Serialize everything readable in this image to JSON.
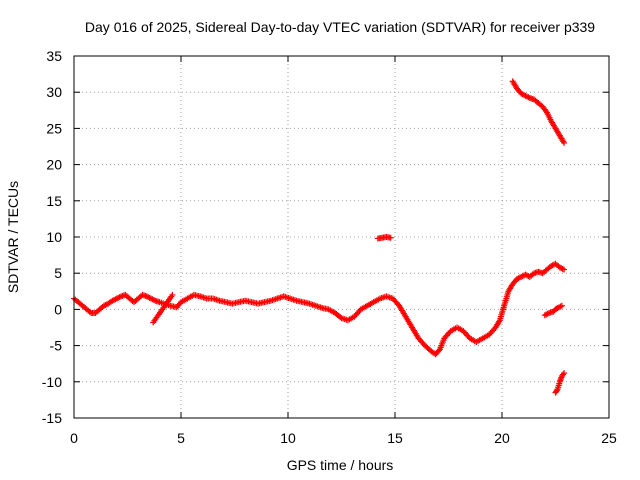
{
  "chart_data": {
    "type": "scatter",
    "title": "Day 016 of 2025, Sidereal Day-to-day VTEC variation (SDTVAR) for receiver p339",
    "xlabel": "GPS time / hours",
    "ylabel": "SDTVAR / TECUs",
    "xlim": [
      0,
      25
    ],
    "ylim": [
      -15,
      35
    ],
    "xticks": [
      0,
      5,
      10,
      15,
      20,
      25
    ],
    "yticks": [
      -15,
      -10,
      -5,
      0,
      5,
      10,
      15,
      20,
      25,
      30,
      35
    ],
    "grid": true,
    "marker": "+",
    "series": [
      {
        "name": "main",
        "color": "#ff0000",
        "x": [
          0.0,
          0.2,
          0.4,
          0.6,
          0.8,
          1.0,
          1.2,
          1.4,
          1.6,
          1.8,
          2.0,
          2.2,
          2.4,
          2.6,
          2.8,
          3.0,
          3.2,
          3.4,
          3.6,
          3.8,
          4.0,
          4.5,
          4.8,
          5.0,
          5.3,
          5.6,
          5.9,
          6.2,
          6.5,
          6.8,
          7.1,
          7.4,
          7.7,
          8.0,
          8.3,
          8.6,
          8.9,
          9.2,
          9.5,
          9.8,
          10.1,
          10.4,
          10.7,
          11.0,
          11.3,
          11.6,
          11.9,
          12.2,
          12.5,
          12.8,
          13.1,
          13.4,
          13.7,
          14.0,
          14.3,
          14.6,
          14.9,
          15.2,
          15.5,
          15.8,
          16.1,
          16.4,
          16.7,
          16.9,
          17.1,
          17.3,
          17.6,
          17.9,
          18.2,
          18.5,
          18.8,
          19.1,
          19.4,
          19.7,
          19.9,
          20.1,
          20.3,
          20.5,
          20.7,
          20.9,
          21.1,
          21.3,
          21.5,
          21.7,
          21.9,
          22.1,
          22.3,
          22.5,
          22.7,
          22.9
        ],
        "y": [
          1.5,
          1.0,
          0.5,
          0.0,
          -0.5,
          -0.5,
          0.0,
          0.5,
          0.8,
          1.2,
          1.5,
          1.8,
          2.0,
          1.5,
          1.0,
          1.5,
          2.0,
          1.8,
          1.5,
          1.2,
          1.0,
          0.5,
          0.3,
          1.0,
          1.5,
          2.0,
          1.8,
          1.5,
          1.5,
          1.2,
          1.0,
          0.8,
          1.0,
          1.2,
          1.0,
          0.8,
          1.0,
          1.2,
          1.5,
          1.8,
          1.5,
          1.2,
          1.0,
          0.8,
          0.5,
          0.2,
          0.0,
          -0.5,
          -1.2,
          -1.5,
          -1.0,
          0.0,
          0.5,
          1.0,
          1.5,
          1.8,
          1.5,
          0.5,
          -1.0,
          -2.5,
          -4.0,
          -5.0,
          -5.8,
          -6.2,
          -5.5,
          -4.0,
          -3.0,
          -2.5,
          -3.0,
          -4.0,
          -4.5,
          -4.0,
          -3.5,
          -2.5,
          -1.5,
          0.5,
          2.5,
          3.5,
          4.2,
          4.5,
          4.8,
          4.5,
          5.0,
          5.2,
          5.0,
          5.5,
          6.0,
          6.3,
          5.8,
          5.5
        ]
      },
      {
        "name": "upper-arc",
        "color": "#ff0000",
        "x": [
          20.5,
          20.7,
          20.9,
          21.1,
          21.3,
          21.5,
          21.7,
          21.9,
          22.1,
          22.3,
          22.5,
          22.7,
          22.9
        ],
        "y": [
          31.5,
          30.5,
          29.8,
          29.5,
          29.2,
          29.0,
          28.5,
          28.0,
          27.2,
          26.0,
          25.0,
          24.0,
          23.0
        ]
      },
      {
        "name": "isolated-segment",
        "color": "#ff0000",
        "x": [
          14.2,
          14.4,
          14.6,
          14.8
        ],
        "y": [
          9.8,
          9.9,
          10.0,
          9.9
        ]
      },
      {
        "name": "late-low",
        "color": "#ff0000",
        "x": [
          22.0,
          22.2,
          22.4,
          22.5,
          22.6,
          22.8
        ],
        "y": [
          -0.8,
          -0.5,
          -0.3,
          0.0,
          0.2,
          0.5
        ]
      },
      {
        "name": "late-negative",
        "color": "#ff0000",
        "x": [
          22.5,
          22.6,
          22.7,
          22.8,
          22.9
        ],
        "y": [
          -11.5,
          -11.0,
          -10.0,
          -9.2,
          -8.8
        ]
      },
      {
        "name": "outliers",
        "color": "#ff0000",
        "x": [
          3.7,
          4.6
        ],
        "y": [
          -1.8,
          2.0
        ]
      }
    ]
  }
}
